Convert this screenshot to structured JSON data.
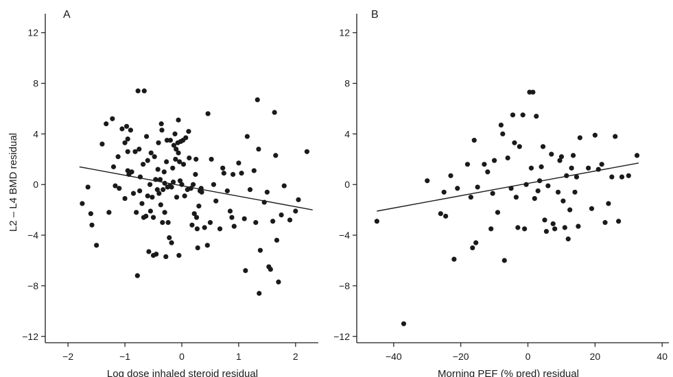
{
  "chart_data": [
    {
      "type": "scatter",
      "panel_label": "A",
      "title": "",
      "xlabel": "Log dose inhaled steroid residual",
      "ylabel": "L2 – L4 BMD residual",
      "xlim": [
        -2.4,
        2.4
      ],
      "ylim": [
        -12.5,
        13.5
      ],
      "xticks": [
        -2,
        -1,
        0,
        1,
        2
      ],
      "xtick_labels": [
        "−2",
        "−1",
        "0",
        "1",
        "2"
      ],
      "yticks": [
        -12,
        -8,
        -4,
        0,
        4,
        8,
        12
      ],
      "ytick_labels": [
        "−12",
        "−8",
        "−4",
        "0",
        "4",
        "8",
        "12"
      ],
      "grid": false,
      "fit_line": {
        "x": [
          -1.8,
          2.3
        ],
        "y": [
          1.4,
          -2.0
        ]
      },
      "points": [
        [
          -1.75,
          -1.5
        ],
        [
          -1.65,
          -0.2
        ],
        [
          -1.6,
          -2.3
        ],
        [
          -1.58,
          -3.2
        ],
        [
          -1.5,
          -4.8
        ],
        [
          -1.4,
          3.2
        ],
        [
          -1.33,
          4.8
        ],
        [
          -1.28,
          -2.2
        ],
        [
          -1.22,
          5.2
        ],
        [
          -1.2,
          1.4
        ],
        [
          -1.17,
          -0.1
        ],
        [
          -1.12,
          2.2
        ],
        [
          -1.1,
          -0.3
        ],
        [
          -1.05,
          4.4
        ],
        [
          -1.0,
          3.3
        ],
        [
          -1.0,
          -1.1
        ],
        [
          -0.97,
          4.6
        ],
        [
          -0.95,
          3.6
        ],
        [
          -0.95,
          2.6
        ],
        [
          -0.95,
          1.1
        ],
        [
          -0.93,
          0.8
        ],
        [
          -0.9,
          4.3
        ],
        [
          -0.88,
          1.0
        ],
        [
          -0.85,
          -0.7
        ],
        [
          -0.82,
          2.6
        ],
        [
          -0.8,
          -2.2
        ],
        [
          -0.78,
          -7.2
        ],
        [
          -0.77,
          7.4
        ],
        [
          -0.75,
          2.8
        ],
        [
          -0.74,
          -0.5
        ],
        [
          -0.73,
          0.6
        ],
        [
          -0.7,
          -1.5
        ],
        [
          -0.68,
          1.6
        ],
        [
          -0.67,
          -2.6
        ],
        [
          -0.66,
          7.4
        ],
        [
          -0.63,
          -2.5
        ],
        [
          -0.62,
          3.8
        ],
        [
          -0.6,
          -0.9
        ],
        [
          -0.6,
          1.9
        ],
        [
          -0.58,
          -5.3
        ],
        [
          -0.56,
          0.0
        ],
        [
          -0.55,
          -2.1
        ],
        [
          -0.54,
          2.5
        ],
        [
          -0.52,
          -1.0
        ],
        [
          -0.5,
          -2.6
        ],
        [
          -0.5,
          -5.6
        ],
        [
          -0.48,
          2.2
        ],
        [
          -0.46,
          0.4
        ],
        [
          -0.45,
          -5.5
        ],
        [
          -0.43,
          -0.4
        ],
        [
          -0.42,
          1.2
        ],
        [
          -0.41,
          3.3
        ],
        [
          -0.4,
          -0.7
        ],
        [
          -0.38,
          0.4
        ],
        [
          -0.37,
          -1.6
        ],
        [
          -0.36,
          4.8
        ],
        [
          -0.35,
          4.3
        ],
        [
          -0.34,
          -3.0
        ],
        [
          -0.33,
          -0.4
        ],
        [
          -0.31,
          1.0
        ],
        [
          -0.3,
          0.1
        ],
        [
          -0.3,
          -2.2
        ],
        [
          -0.28,
          -5.7
        ],
        [
          -0.27,
          1.8
        ],
        [
          -0.26,
          3.5
        ],
        [
          -0.25,
          -0.2
        ],
        [
          -0.24,
          -3.0
        ],
        [
          -0.22,
          -4.2
        ],
        [
          -0.21,
          -0.1
        ],
        [
          -0.2,
          3.5
        ],
        [
          -0.18,
          -0.2
        ],
        [
          -0.18,
          -4.6
        ],
        [
          -0.16,
          1.3
        ],
        [
          -0.15,
          0.2
        ],
        [
          -0.14,
          3.1
        ],
        [
          -0.12,
          4.0
        ],
        [
          -0.11,
          2.0
        ],
        [
          -0.1,
          2.8
        ],
        [
          -0.09,
          -1.0
        ],
        [
          -0.07,
          3.3
        ],
        [
          -0.06,
          5.1
        ],
        [
          -0.06,
          2.5
        ],
        [
          -0.05,
          -5.6
        ],
        [
          -0.04,
          1.8
        ],
        [
          -0.03,
          0.3
        ],
        [
          -0.02,
          3.4
        ],
        [
          0.0,
          0.0
        ],
        [
          0.02,
          3.5
        ],
        [
          0.03,
          1.6
        ],
        [
          0.05,
          -0.9
        ],
        [
          0.07,
          3.7
        ],
        [
          0.1,
          -0.4
        ],
        [
          0.12,
          4.2
        ],
        [
          0.13,
          2.1
        ],
        [
          0.16,
          -0.3
        ],
        [
          0.18,
          -3.2
        ],
        [
          0.2,
          0.0
        ],
        [
          0.22,
          -2.3
        ],
        [
          0.24,
          0.8
        ],
        [
          0.25,
          2.0
        ],
        [
          0.26,
          -2.6
        ],
        [
          0.27,
          -3.5
        ],
        [
          0.28,
          -5.0
        ],
        [
          0.3,
          -1.7
        ],
        [
          0.32,
          -0.5
        ],
        [
          0.34,
          -0.3
        ],
        [
          0.35,
          -0.6
        ],
        [
          0.4,
          -3.4
        ],
        [
          0.45,
          -4.8
        ],
        [
          0.46,
          5.6
        ],
        [
          0.5,
          -3.0
        ],
        [
          0.52,
          2.0
        ],
        [
          0.56,
          0.0
        ],
        [
          0.6,
          -1.3
        ],
        [
          0.67,
          -3.5
        ],
        [
          0.72,
          1.3
        ],
        [
          0.74,
          0.9
        ],
        [
          0.8,
          -0.5
        ],
        [
          0.85,
          -2.1
        ],
        [
          0.88,
          -2.6
        ],
        [
          0.9,
          0.8
        ],
        [
          0.92,
          -3.3
        ],
        [
          1.0,
          1.7
        ],
        [
          1.05,
          0.9
        ],
        [
          1.1,
          -2.7
        ],
        [
          1.12,
          -6.8
        ],
        [
          1.15,
          3.8
        ],
        [
          1.2,
          -0.4
        ],
        [
          1.27,
          1.1
        ],
        [
          1.3,
          -3.0
        ],
        [
          1.33,
          6.7
        ],
        [
          1.35,
          2.8
        ],
        [
          1.36,
          -8.6
        ],
        [
          1.38,
          -5.2
        ],
        [
          1.45,
          -1.4
        ],
        [
          1.5,
          -0.6
        ],
        [
          1.53,
          -6.5
        ],
        [
          1.56,
          -6.7
        ],
        [
          1.6,
          -2.9
        ],
        [
          1.63,
          5.7
        ],
        [
          1.65,
          2.3
        ],
        [
          1.67,
          -4.4
        ],
        [
          1.7,
          -7.7
        ],
        [
          1.75,
          -2.4
        ],
        [
          1.8,
          -0.1
        ],
        [
          1.9,
          -2.8
        ],
        [
          2.0,
          -2.1
        ],
        [
          2.05,
          -1.2
        ],
        [
          2.2,
          2.6
        ]
      ]
    },
    {
      "type": "scatter",
      "panel_label": "B",
      "title": "",
      "xlabel": "Morning PEF (% pred) residual",
      "ylabel": "",
      "xlim": [
        -51,
        42
      ],
      "ylim": [
        -12.5,
        13.5
      ],
      "xticks": [
        -40,
        -20,
        0,
        20,
        40
      ],
      "xtick_labels": [
        "−40",
        "−20",
        "0",
        "20",
        "40"
      ],
      "yticks": [
        -12,
        -8,
        -4,
        0,
        4,
        8,
        12
      ],
      "ytick_labels": [
        "−12",
        "−8",
        "−4",
        "0",
        "4",
        "8",
        "12"
      ],
      "grid": false,
      "fit_line": {
        "x": [
          -45,
          33
        ],
        "y": [
          -2.1,
          1.7
        ]
      },
      "points": [
        [
          -45,
          -2.9
        ],
        [
          -37,
          -11.0
        ],
        [
          -30,
          0.3
        ],
        [
          -26,
          -2.3
        ],
        [
          -25,
          -0.6
        ],
        [
          -24.5,
          -2.5
        ],
        [
          -23,
          0.7
        ],
        [
          -22,
          -5.9
        ],
        [
          -21,
          -0.3
        ],
        [
          -18,
          1.6
        ],
        [
          -17,
          -1.0
        ],
        [
          -16.5,
          -5.0
        ],
        [
          -16,
          3.5
        ],
        [
          -15.5,
          -4.6
        ],
        [
          -15,
          -0.2
        ],
        [
          -13,
          1.6
        ],
        [
          -12,
          1.0
        ],
        [
          -11,
          -3.5
        ],
        [
          -10.5,
          -0.7
        ],
        [
          -10,
          1.9
        ],
        [
          -9,
          -2.2
        ],
        [
          -8,
          4.7
        ],
        [
          -7.5,
          4.0
        ],
        [
          -7,
          -6.0
        ],
        [
          -6,
          2.1
        ],
        [
          -5,
          -0.3
        ],
        [
          -4.5,
          5.5
        ],
        [
          -4,
          3.3
        ],
        [
          -3.5,
          -1.0
        ],
        [
          -3,
          -3.4
        ],
        [
          -2.5,
          3.0
        ],
        [
          -1.5,
          5.5
        ],
        [
          -1,
          -3.5
        ],
        [
          -0.5,
          0.0
        ],
        [
          0.5,
          7.3
        ],
        [
          1,
          1.3
        ],
        [
          1.5,
          7.3
        ],
        [
          2,
          -1.1
        ],
        [
          2.5,
          5.4
        ],
        [
          3,
          -0.5
        ],
        [
          3.5,
          0.3
        ],
        [
          4,
          1.4
        ],
        [
          4.5,
          3.0
        ],
        [
          5,
          -2.8
        ],
        [
          5.5,
          -3.7
        ],
        [
          6,
          -0.1
        ],
        [
          7,
          2.4
        ],
        [
          7.5,
          -3.1
        ],
        [
          8,
          -3.5
        ],
        [
          9,
          -0.6
        ],
        [
          9.5,
          1.9
        ],
        [
          10,
          2.2
        ],
        [
          10.5,
          -1.3
        ],
        [
          11,
          -3.4
        ],
        [
          11.5,
          0.7
        ],
        [
          12,
          -4.3
        ],
        [
          12.5,
          -2.0
        ],
        [
          13,
          1.3
        ],
        [
          13.5,
          2.3
        ],
        [
          14,
          -0.6
        ],
        [
          14.5,
          0.6
        ],
        [
          15,
          -3.3
        ],
        [
          15.5,
          3.7
        ],
        [
          18,
          1.3
        ],
        [
          19,
          -1.9
        ],
        [
          20,
          3.9
        ],
        [
          21,
          1.2
        ],
        [
          22,
          1.6
        ],
        [
          23,
          -3.0
        ],
        [
          24,
          -1.5
        ],
        [
          25,
          0.6
        ],
        [
          26,
          3.8
        ],
        [
          27,
          -2.9
        ],
        [
          28,
          0.6
        ],
        [
          30,
          0.7
        ],
        [
          32.5,
          2.3
        ]
      ]
    }
  ]
}
